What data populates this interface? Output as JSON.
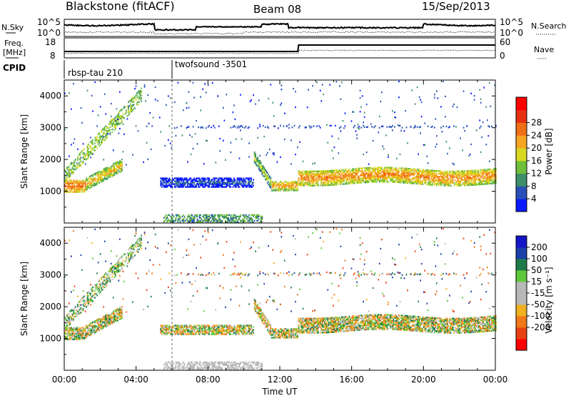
{
  "header": {
    "title": "Blackstone (fitACF)",
    "beam": "Beam 08",
    "date": "15/Sep/2013"
  },
  "noise_panel": {
    "left_label": "N.Sky",
    "left_ticks": [
      "10^5",
      "10^0"
    ],
    "right_ticks": [
      "10^5",
      "10^0"
    ],
    "right_label": "N.Search",
    "right_line": "··········"
  },
  "freq_panel": {
    "left_label_1": "Freq.",
    "left_label_2": "[MHz]",
    "left_ticks": [
      18,
      8
    ],
    "right_ticks": [
      60,
      0
    ],
    "right_label": "Nave",
    "right_line": "·····"
  },
  "cpid_panel": {
    "label": "CPID",
    "modes": [
      {
        "name": "rbsp-tau 210",
        "start_h": 0
      },
      {
        "name": "twofsound -3501",
        "start_h": 6
      }
    ]
  },
  "colors": {
    "power": [
      "#0a1aff",
      "#2850b8",
      "#3d8f6a",
      "#6fbf3a",
      "#d8d820",
      "#f5a623",
      "#f07018",
      "#e83010",
      "#ff0000"
    ],
    "velocity": [
      "#1515c8",
      "#1a3fa8",
      "#1f7a4a",
      "#5ec83a",
      "#b8b8b8",
      "#b8b8b8",
      "#f0b020",
      "#f07818",
      "#e84010",
      "#ff0000"
    ]
  },
  "chart_data": [
    {
      "type": "heatmap",
      "name": "power",
      "ylabel": "Slant Range [km]",
      "ylim": [
        0,
        4500
      ],
      "yticks": [
        1000,
        2000,
        3000,
        4000
      ],
      "xlim": [
        0,
        24
      ],
      "colorbar_label": "Power [dB]",
      "colorbar_ticks": [
        4,
        8,
        12,
        16,
        20,
        24,
        28
      ],
      "colorbar_range": [
        0,
        32
      ]
    },
    {
      "type": "heatmap",
      "name": "velocity",
      "ylabel": "Slant Range [km]",
      "ylim": [
        0,
        4500
      ],
      "yticks": [
        1000,
        2000,
        3000,
        4000
      ],
      "xlim": [
        0,
        24
      ],
      "xlabel": "Time UT",
      "xticks": [
        "00:00",
        "04:00",
        "08:00",
        "12:00",
        "16:00",
        "20:00",
        "00:00"
      ],
      "colorbar_label": "Velocity [m s⁻¹]",
      "colorbar_ticks": [
        "200",
        "100",
        "50",
        "15",
        "-15",
        "-50",
        "-100",
        "-200"
      ]
    }
  ]
}
